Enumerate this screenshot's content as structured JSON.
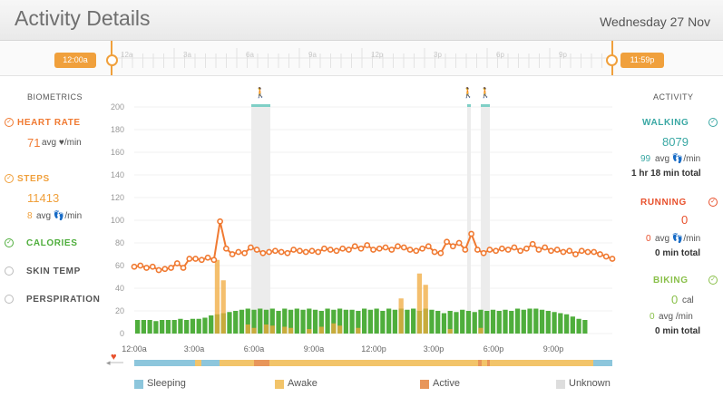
{
  "header": {
    "title": "Activity Details",
    "date": "Wednesday 27 Nov"
  },
  "timeline": {
    "start": "12:00a",
    "end": "11:59p",
    "ticks": [
      "12a",
      "3a",
      "6a",
      "9a",
      "12p",
      "3p",
      "6p",
      "9p"
    ]
  },
  "left": {
    "section": "BIOMETRICS",
    "heart": {
      "label": "HEART RATE",
      "value": "71",
      "unit": "avg ♥/min"
    },
    "steps": {
      "label": "STEPS",
      "value": "11413",
      "unit_value": "8",
      "unit": "avg 👣/min"
    },
    "calories": {
      "label": "CALORIES"
    },
    "skin": {
      "label": "SKIN TEMP"
    },
    "persp": {
      "label": "PERSPIRATION"
    }
  },
  "right": {
    "section": "ACTIVITY",
    "walking": {
      "label": "WALKING",
      "value": "8079",
      "avg_value": "99",
      "avg_unit": "avg 👣/min",
      "total": "1 hr 18 min total"
    },
    "running": {
      "label": "RUNNING",
      "value": "0",
      "avg_value": "0",
      "avg_unit": "avg 👣/min",
      "total": "0 min total"
    },
    "biking": {
      "label": "BIKING",
      "value": "0",
      "value_unit": "cal",
      "avg_value": "0",
      "avg_unit": "avg /min",
      "total": "0 min total"
    }
  },
  "legend": {
    "sleeping": "Sleeping",
    "awake": "Awake",
    "active": "Active",
    "unknown": "Unknown"
  },
  "colors": {
    "heart": "#f07a32",
    "steps": "#f0a03c",
    "calories": "#4fae3c",
    "walking": "#3aa8a4",
    "running": "#e8502c",
    "biking": "#8ac04a",
    "sleeping": "#8dc6dc",
    "awake": "#f2c46a",
    "active": "#e8965a",
    "unknown": "#dddddd"
  },
  "chart_data": {
    "type": "line",
    "title": "",
    "ylim": [
      0,
      200
    ],
    "yticks": [
      "200",
      "180",
      "160",
      "140",
      "120",
      "100",
      "80",
      "60",
      "40",
      "20",
      "0"
    ],
    "xticks": [
      "12:00a",
      "3:00a",
      "6:00a",
      "9:00a",
      "12:00p",
      "3:00p",
      "6:00p",
      "9:00p"
    ],
    "heart_rate": [
      59,
      60,
      58,
      59,
      56,
      57,
      58,
      62,
      58,
      66,
      66,
      65,
      67,
      65,
      99,
      75,
      70,
      72,
      71,
      76,
      74,
      71,
      72,
      73,
      72,
      71,
      74,
      73,
      72,
      73,
      72,
      75,
      74,
      73,
      75,
      74,
      77,
      75,
      78,
      74,
      75,
      76,
      74,
      77,
      76,
      74,
      73,
      75,
      77,
      72,
      71,
      81,
      77,
      80,
      74,
      88,
      74,
      71,
      74,
      73,
      75,
      74,
      76,
      73,
      75,
      79,
      74,
      76,
      73,
      74,
      72,
      73,
      70,
      73,
      72,
      72,
      70,
      68,
      66
    ],
    "calories": [
      12,
      12,
      12,
      11,
      12,
      12,
      12,
      13,
      12,
      13,
      13,
      14,
      16,
      17,
      18,
      19,
      20,
      21,
      22,
      21,
      22,
      21,
      22,
      20,
      22,
      21,
      22,
      21,
      22,
      21,
      20,
      22,
      21,
      22,
      21,
      21,
      20,
      22,
      21,
      22,
      20,
      22,
      21,
      22,
      21,
      22,
      20,
      22,
      21,
      20,
      18,
      20,
      19,
      21,
      20,
      19,
      21,
      20,
      21,
      20,
      21,
      20,
      22,
      21,
      22,
      22,
      21,
      20,
      19,
      18,
      17,
      15,
      13,
      12
    ],
    "steps_bars": [
      {
        "i": 13,
        "v": 65
      },
      {
        "i": 14,
        "v": 47
      },
      {
        "i": 18,
        "v": 8
      },
      {
        "i": 19,
        "v": 5
      },
      {
        "i": 21,
        "v": 8
      },
      {
        "i": 22,
        "v": 7
      },
      {
        "i": 24,
        "v": 6
      },
      {
        "i": 25,
        "v": 5
      },
      {
        "i": 28,
        "v": 4
      },
      {
        "i": 30,
        "v": 6
      },
      {
        "i": 32,
        "v": 9
      },
      {
        "i": 33,
        "v": 7
      },
      {
        "i": 36,
        "v": 5
      },
      {
        "i": 43,
        "v": 31
      },
      {
        "i": 46,
        "v": 53
      },
      {
        "i": 47,
        "v": 43
      },
      {
        "i": 51,
        "v": 4
      },
      {
        "i": 56,
        "v": 5
      }
    ]
  }
}
